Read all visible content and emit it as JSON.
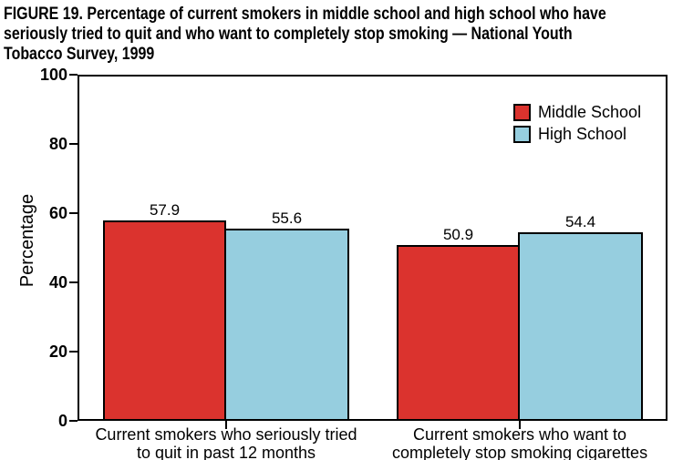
{
  "figure": {
    "title_lines": [
      "FIGURE 19. Percentage of current smokers in middle school and high school who have",
      "seriously tried to quit and who want to completely stop smoking — National Youth",
      "Tobacco Survey, 1999"
    ]
  },
  "chart_data": {
    "type": "bar",
    "title": "FIGURE 19. Percentage of current smokers in middle school and high school who have seriously tried to quit and who want to completely stop smoking — National Youth Tobacco Survey, 1999",
    "xlabel": "",
    "ylabel": "Percentage",
    "ylim": [
      0,
      100
    ],
    "yticks": [
      0,
      20,
      40,
      60,
      80,
      100
    ],
    "grid": false,
    "legend_position": "top-right-inside",
    "categories": [
      "Current smokers who seriously tried to quit in past 12 months",
      "Current smokers who want to completely stop smoking cigarettes"
    ],
    "category_lines": [
      [
        "Current smokers who seriously tried",
        "to quit in past 12 months"
      ],
      [
        "Current smokers who want to",
        "completely stop smoking cigarettes"
      ]
    ],
    "series": [
      {
        "name": "Middle School",
        "color": "#DB332E",
        "values": [
          57.9,
          50.9
        ]
      },
      {
        "name": "High School",
        "color": "#96CEDF",
        "values": [
          55.6,
          54.4
        ]
      }
    ],
    "value_label_decimals": 1
  },
  "colors": {
    "background": "#FFFFFF",
    "axis": "#000000",
    "text": "#000000",
    "middle_school": "#DB332E",
    "high_school": "#96CEDF"
  }
}
